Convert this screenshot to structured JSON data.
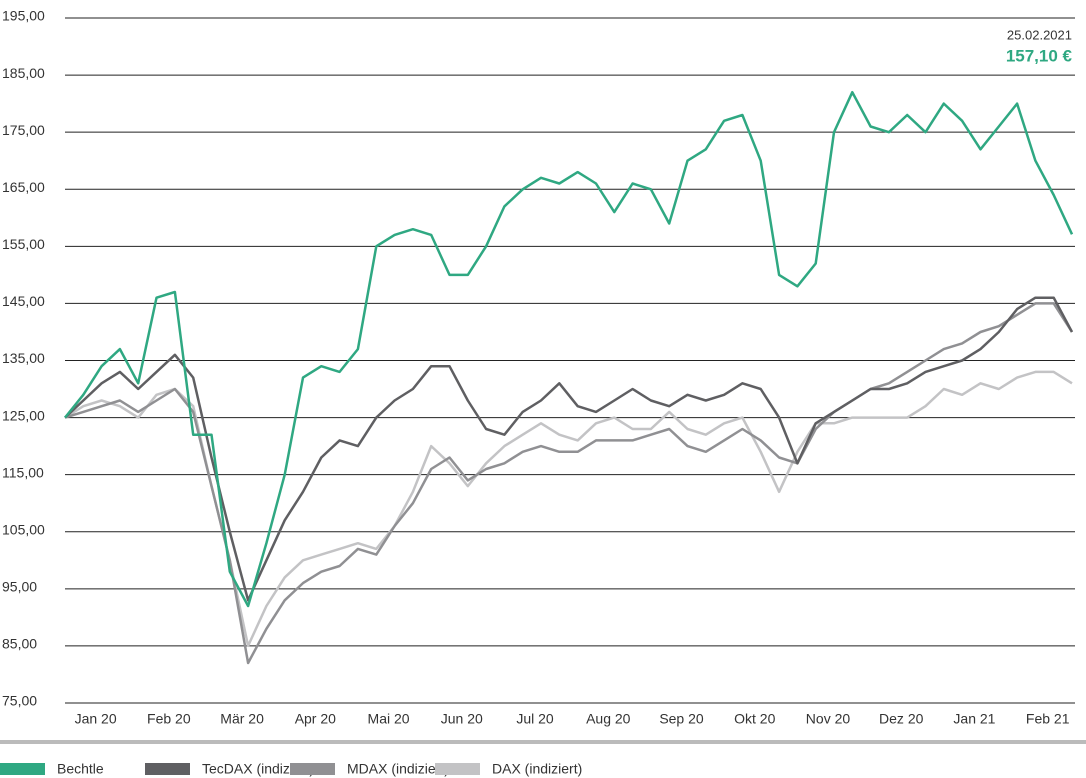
{
  "chart_data": {
    "type": "line",
    "annotations": [
      "25.02.2021",
      "157,10 €"
    ],
    "categories": [
      null,
      null,
      "Jan 20",
      null,
      null,
      null,
      "Feb 20",
      null,
      null,
      null,
      "Mär 20",
      null,
      null,
      null,
      "Apr 20",
      null,
      null,
      null,
      "Mai 20",
      null,
      null,
      null,
      "Jun 20",
      null,
      null,
      null,
      "Jul 20",
      null,
      null,
      null,
      "Aug 20",
      null,
      null,
      null,
      "Sep 20",
      null,
      null,
      null,
      "Okt 20",
      null,
      null,
      null,
      "Nov 20",
      null,
      null,
      null,
      "Dez 20",
      null,
      null,
      null,
      "Jan 21",
      null,
      null,
      null,
      "Feb 21",
      null
    ],
    "series": [
      {
        "name": "Bechtle",
        "color": "#2fa882",
        "values": [
          125,
          129,
          134,
          137,
          131,
          146,
          147,
          122,
          122,
          98,
          92,
          103,
          115,
          132,
          134,
          133,
          137,
          155,
          157,
          158,
          157,
          150,
          150,
          155,
          162,
          165,
          167,
          166,
          168,
          166,
          161,
          166,
          165,
          159,
          170,
          172,
          177,
          178,
          170,
          150,
          148,
          152,
          175,
          182,
          176,
          175,
          178,
          175,
          180,
          177,
          172,
          176,
          180,
          170,
          164,
          157.1
        ]
      },
      {
        "name": "TecDAX (indiziert)",
        "color": "#5f5f62",
        "values": [
          125,
          128,
          131,
          133,
          130,
          133,
          136,
          132,
          118,
          105,
          93,
          100,
          107,
          112,
          118,
          121,
          120,
          125,
          128,
          130,
          134,
          134,
          128,
          123,
          122,
          126,
          128,
          131,
          127,
          126,
          128,
          130,
          128,
          127,
          129,
          128,
          129,
          131,
          130,
          125,
          117,
          124,
          126,
          128,
          130,
          130,
          131,
          133,
          134,
          135,
          137,
          140,
          144,
          146,
          146,
          140
        ]
      },
      {
        "name": "MDAX (indiziert)",
        "color": "#909093",
        "values": [
          125,
          126,
          127,
          128,
          126,
          128,
          130,
          126,
          113,
          100,
          82,
          88,
          93,
          96,
          98,
          99,
          102,
          101,
          106,
          110,
          116,
          118,
          114,
          116,
          117,
          119,
          120,
          119,
          119,
          121,
          121,
          121,
          122,
          123,
          120,
          119,
          121,
          123,
          121,
          118,
          117,
          123,
          126,
          128,
          130,
          131,
          133,
          135,
          137,
          138,
          140,
          141,
          143,
          145,
          145,
          140
        ]
      },
      {
        "name": "DAX (indiziert)",
        "color": "#c3c3c5",
        "values": [
          125,
          127,
          128,
          127,
          125,
          129,
          130,
          127,
          113,
          100,
          85,
          92,
          97,
          100,
          101,
          102,
          103,
          102,
          106,
          112,
          120,
          117,
          113,
          117,
          120,
          122,
          124,
          122,
          121,
          124,
          125,
          123,
          123,
          126,
          123,
          122,
          124,
          125,
          119,
          112,
          119,
          124,
          124,
          125,
          125,
          125,
          125,
          127,
          130,
          129,
          131,
          130,
          132,
          133,
          133,
          131
        ]
      }
    ],
    "ylim": [
      75,
      195
    ],
    "yticks": [
      {
        "value": 75,
        "label": "75,00"
      },
      {
        "value": 85,
        "label": "85,00"
      },
      {
        "value": 95,
        "label": "95,00"
      },
      {
        "value": 105,
        "label": "105,00"
      },
      {
        "value": 115,
        "label": "115,00"
      },
      {
        "value": 125,
        "label": "125,00"
      },
      {
        "value": 135,
        "label": "135,00"
      },
      {
        "value": 145,
        "label": "145,00"
      },
      {
        "value": 155,
        "label": "155,00"
      },
      {
        "value": 165,
        "label": "165,00"
      },
      {
        "value": 175,
        "label": "175,00"
      },
      {
        "value": 185,
        "label": "185,00"
      },
      {
        "value": 195,
        "label": "195,00"
      }
    ],
    "grid": true,
    "legend": "bottom"
  }
}
